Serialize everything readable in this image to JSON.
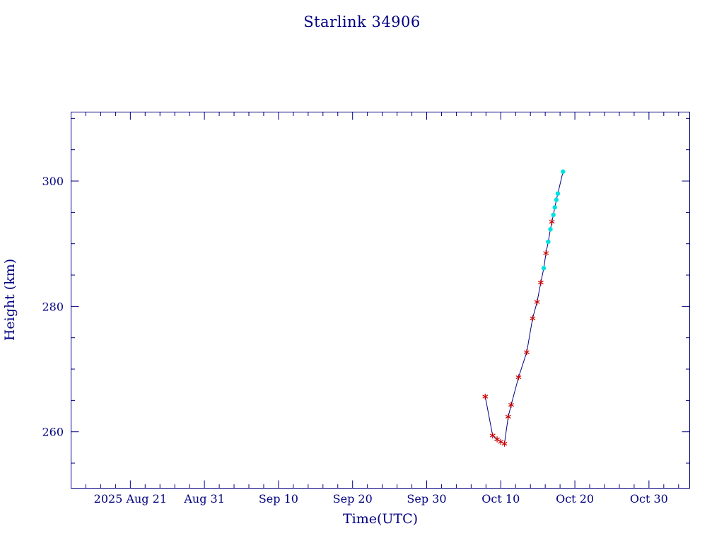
{
  "colors": {
    "background": "#ffffff",
    "axis": "#000080",
    "text": "#000080",
    "line": "#000080",
    "marker_red": "#cc0000",
    "marker_cyan": "#00e0e0"
  },
  "chart_data": {
    "type": "line",
    "title": "Starlink 34906",
    "xlabel": "Time(UTC)",
    "ylabel": "Height (km)",
    "x_axis": {
      "unit_note": "day index where 0 = left edge of box (approx 2025 Aug 13)",
      "lim": [
        0,
        83.5
      ],
      "major_ticks": [
        {
          "day": 8,
          "label": "2025 Aug 21"
        },
        {
          "day": 18,
          "label": "Aug 31"
        },
        {
          "day": 28,
          "label": "Sep 10"
        },
        {
          "day": 38,
          "label": "Sep 20"
        },
        {
          "day": 48,
          "label": "Sep 30"
        },
        {
          "day": 58,
          "label": "Oct 10"
        },
        {
          "day": 68,
          "label": "Oct 20"
        },
        {
          "day": 78,
          "label": "Oct 30"
        }
      ],
      "minor_step": 2
    },
    "y_axis": {
      "lim": [
        251,
        311
      ],
      "major_ticks": [
        260,
        280,
        300
      ],
      "minor_step": 5
    },
    "series": [
      {
        "name": "height-vs-time",
        "line_color": "#000080",
        "points": [
          {
            "day": 55.9,
            "km": 265.6,
            "m": "red"
          },
          {
            "day": 56.9,
            "km": 259.4,
            "m": "red"
          },
          {
            "day": 57.5,
            "km": 258.8,
            "m": "red"
          },
          {
            "day": 58.0,
            "km": 258.4,
            "m": "red"
          },
          {
            "day": 58.5,
            "km": 258.1,
            "m": "red"
          },
          {
            "day": 59.0,
            "km": 262.4,
            "m": "red"
          },
          {
            "day": 59.4,
            "km": 264.3,
            "m": "red"
          },
          {
            "day": 60.4,
            "km": 268.7,
            "m": "red"
          },
          {
            "day": 61.5,
            "km": 272.7,
            "m": "red"
          },
          {
            "day": 62.3,
            "km": 278.1,
            "m": "red"
          },
          {
            "day": 62.9,
            "km": 280.7,
            "m": "red"
          },
          {
            "day": 63.4,
            "km": 283.8,
            "m": "red"
          },
          {
            "day": 63.8,
            "km": 286.1,
            "m": "cyan"
          },
          {
            "day": 64.1,
            "km": 288.5,
            "m": "red"
          },
          {
            "day": 64.4,
            "km": 290.3,
            "m": "cyan"
          },
          {
            "day": 64.7,
            "km": 292.3,
            "m": "cyan"
          },
          {
            "day": 64.9,
            "km": 293.5,
            "m": "red"
          },
          {
            "day": 65.1,
            "km": 294.6,
            "m": "cyan"
          },
          {
            "day": 65.3,
            "km": 295.8,
            "m": "cyan"
          },
          {
            "day": 65.5,
            "km": 297.0,
            "m": "cyan"
          },
          {
            "day": 65.7,
            "km": 298.0,
            "m": "cyan"
          },
          {
            "day": 66.4,
            "km": 301.5,
            "m": "cyan"
          }
        ]
      }
    ]
  }
}
